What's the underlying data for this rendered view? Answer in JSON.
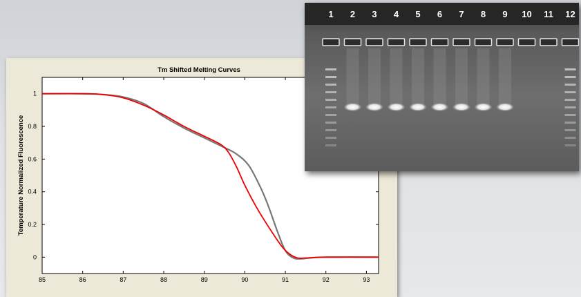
{
  "chart_data": {
    "type": "line",
    "title": "Tm Shifted Melting Curves",
    "xlabel": "",
    "ylabel": "Temperature Normalized Fluorescence",
    "xlim": [
      85,
      93.3
    ],
    "ylim": [
      -0.1,
      1.1
    ],
    "xticks": [
      "85",
      "86",
      "87",
      "88",
      "89",
      "90",
      "91",
      "92",
      "93"
    ],
    "yticks": [
      "0",
      "0.2",
      "0.4",
      "0.6",
      "0.8",
      "1"
    ],
    "grid": false,
    "colors": {
      "red_series": "#ee0000",
      "gray_series": "#777777"
    },
    "series": [
      {
        "color": "#777777",
        "x": [
          85,
          86,
          86.5,
          87,
          87.5,
          88,
          88.5,
          89,
          89.5,
          89.8,
          90.1,
          90.4,
          90.6,
          90.8,
          91,
          91.2,
          91.4,
          91.6,
          92,
          93.3
        ],
        "y": [
          1.0,
          1.0,
          0.995,
          0.98,
          0.94,
          0.86,
          0.79,
          0.73,
          0.67,
          0.63,
          0.56,
          0.42,
          0.3,
          0.16,
          0.04,
          -0.005,
          -0.01,
          -0.005,
          0.0,
          0.0
        ]
      },
      {
        "color": "#ee0000",
        "x": [
          85,
          86,
          86.5,
          87,
          87.5,
          88,
          88.5,
          89,
          89.4,
          89.6,
          89.8,
          90,
          90.3,
          90.6,
          90.9,
          91.1,
          91.3,
          91.5,
          92,
          93.3
        ],
        "y": [
          1.0,
          1.0,
          0.995,
          0.975,
          0.93,
          0.87,
          0.8,
          0.74,
          0.69,
          0.64,
          0.55,
          0.44,
          0.3,
          0.18,
          0.07,
          0.02,
          -0.005,
          -0.005,
          0.0,
          0.0
        ]
      }
    ]
  },
  "gel": {
    "lane_labels": [
      "1",
      "2",
      "3",
      "4",
      "5",
      "6",
      "7",
      "8",
      "9",
      "10",
      "11",
      "12"
    ],
    "band_lanes": [
      "2",
      "3",
      "4",
      "5",
      "6",
      "7",
      "8",
      "9"
    ],
    "ladder_lanes": [
      "1",
      "12"
    ]
  }
}
